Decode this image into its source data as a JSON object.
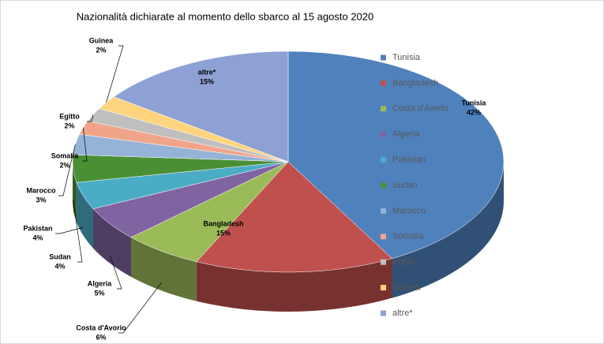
{
  "chart_data": {
    "type": "pie3d",
    "title": "Nazionalità dichiarate al momento dello sbarco al 15 agosto 2020",
    "categories": [
      "Tunisia",
      "Bangladesh",
      "Costa d'Avorio",
      "Algeria",
      "Pakistan",
      "Sudan",
      "Marocco",
      "Somalia",
      "Egitto",
      "Guinea",
      "altre*"
    ],
    "values": [
      42,
      15,
      6,
      5,
      4,
      4,
      3,
      2,
      2,
      2,
      15
    ],
    "value_labels": [
      "42%",
      "15%",
      "6%",
      "5%",
      "4%",
      "4%",
      "3%",
      "2%",
      "2%",
      "2%",
      "15%"
    ],
    "colors": [
      "#4f81bd",
      "#c0504d",
      "#9bbb59",
      "#8064a2",
      "#4bacc6",
      "#4a8f34",
      "#95b3d7",
      "#f0a58b",
      "#bfbfbf",
      "#ffd47f",
      "#8ea1d4"
    ],
    "legend": "right"
  }
}
